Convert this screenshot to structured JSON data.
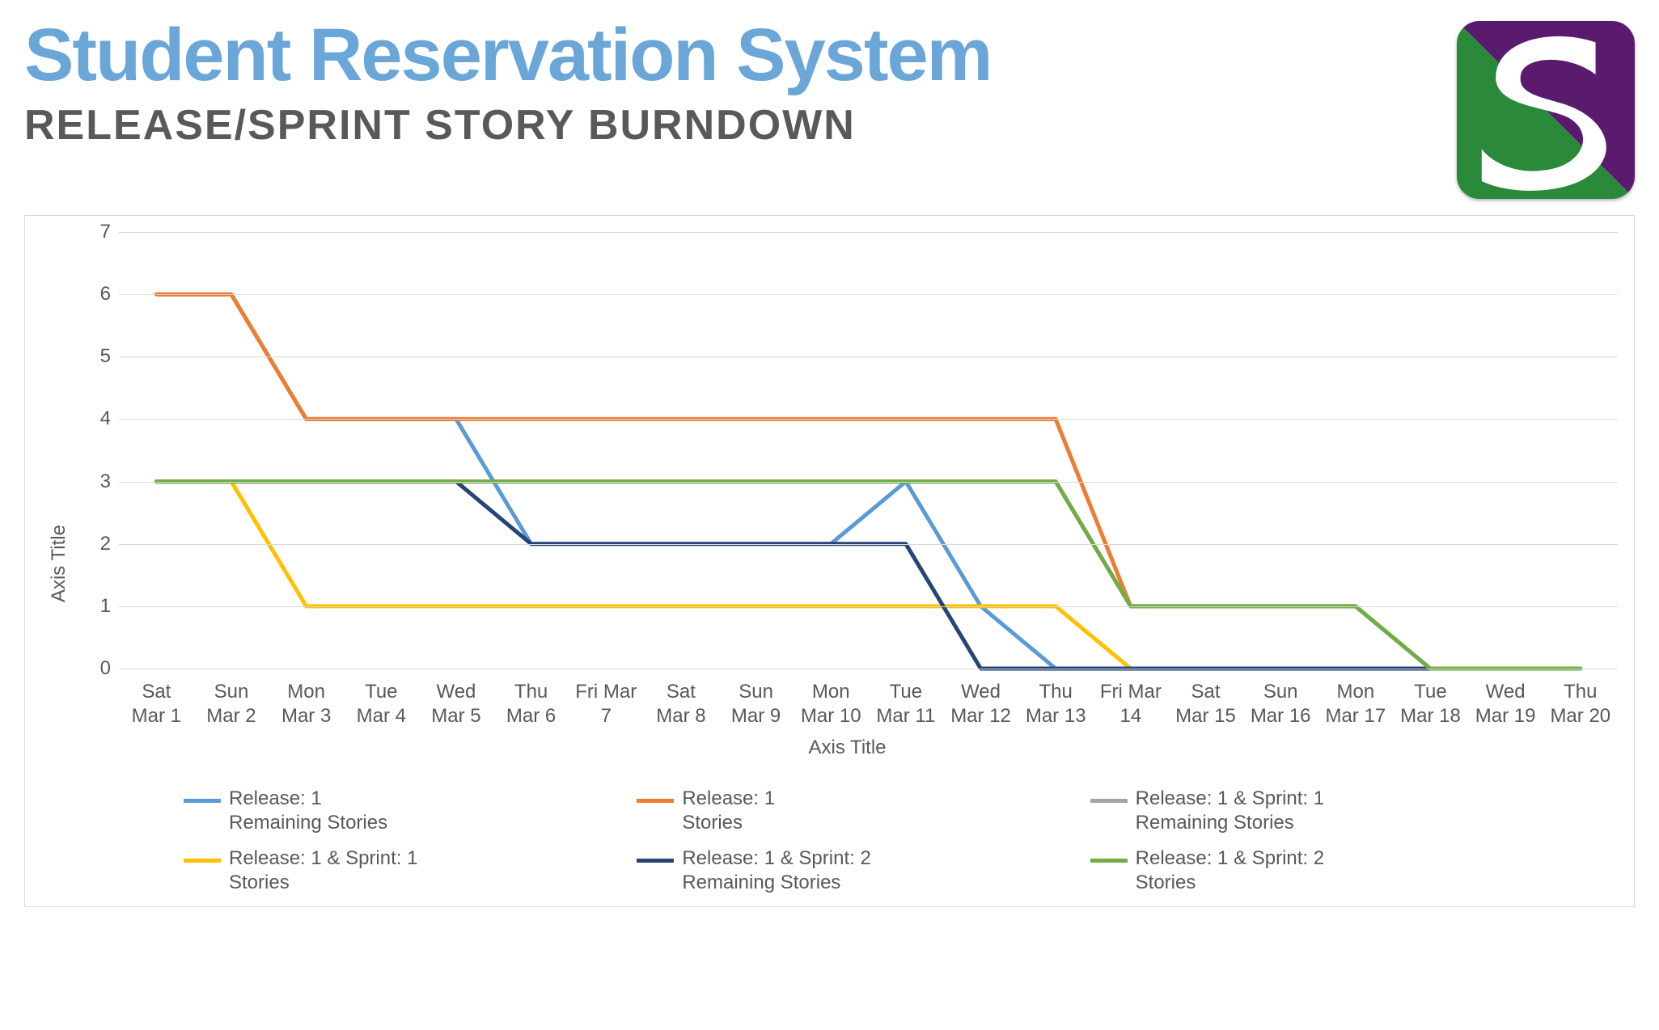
{
  "header": {
    "title": "Student Reservation System",
    "subtitle": "RELEASE/SPRINT STORY BURNDOWN",
    "title_color": "#6aa6d8",
    "subtitle_color": "#595959",
    "title_fontsize": 92,
    "subtitle_fontsize": 52
  },
  "logo": {
    "bg_green": "#2a8a3a",
    "bg_purple": "#5a1a6e",
    "s_color": "#ffffff",
    "frame_color": "#b8b8b8"
  },
  "chart": {
    "type": "line",
    "x_label": "Axis Title",
    "y_label": "Axis Title",
    "label_fontsize": 24,
    "tick_fontsize": 24,
    "text_color": "#595959",
    "border_color": "#d9d9d9",
    "grid_color": "#d9d9d9",
    "background_color": "#ffffff",
    "ylim": [
      0,
      7
    ],
    "ytick_step": 1,
    "yticks": [
      0,
      1,
      2,
      3,
      4,
      5,
      6,
      7
    ],
    "categories": [
      "Sat\nMar 1",
      "Sun\nMar 2",
      "Mon\nMar 3",
      "Tue\nMar 4",
      "Wed\nMar 5",
      "Thu\nMar 6",
      "Fri Mar\n7",
      "Sat\nMar 8",
      "Sun\nMar 9",
      "Mon\nMar 10",
      "Tue\nMar 11",
      "Wed\nMar 12",
      "Thu\nMar 13",
      "Fri Mar\n14",
      "Sat\nMar 15",
      "Sun\nMar 16",
      "Mon\nMar 17",
      "Tue\nMar 18",
      "Wed\nMar 19",
      "Thu\nMar 20"
    ],
    "line_width": 5,
    "series": [
      {
        "name": "Release: 1\nRemaining Stories",
        "color": "#5b9bd5",
        "values": [
          6,
          6,
          4,
          4,
          4,
          2,
          2,
          2,
          2,
          2,
          3,
          1,
          0,
          0,
          0,
          0,
          0,
          0,
          0,
          0
        ]
      },
      {
        "name": "Release: 1\nStories",
        "color": "#ed7d31",
        "values": [
          6,
          6,
          4,
          4,
          4,
          4,
          4,
          4,
          4,
          4,
          4,
          4,
          4,
          1,
          1,
          1,
          1,
          0,
          0,
          0
        ]
      },
      {
        "name": "Release: 1 & Sprint: 1\nRemaining Stories",
        "color": "#a5a5a5",
        "values": [
          3,
          3,
          3,
          3,
          3,
          3,
          3,
          3,
          3,
          3,
          3,
          3,
          3,
          1,
          1,
          1,
          1,
          0,
          0,
          0
        ]
      },
      {
        "name": "Release: 1 & Sprint: 1\nStories",
        "color": "#ffc000",
        "values": [
          3,
          3,
          1,
          1,
          1,
          1,
          1,
          1,
          1,
          1,
          1,
          1,
          1,
          0,
          0,
          0,
          0,
          0,
          0,
          0
        ]
      },
      {
        "name": "Release: 1 & Sprint: 2\nRemaining Stories",
        "color": "#264478",
        "values": [
          3,
          3,
          3,
          3,
          3,
          2,
          2,
          2,
          2,
          2,
          2,
          0,
          0,
          0,
          0,
          0,
          0,
          0,
          0,
          0
        ]
      },
      {
        "name": "Release: 1 & Sprint: 2\nStories",
        "color": "#70ad47",
        "values": [
          3,
          3,
          3,
          3,
          3,
          3,
          3,
          3,
          3,
          3,
          3,
          3,
          3,
          1,
          1,
          1,
          1,
          0,
          0,
          0
        ]
      }
    ]
  }
}
